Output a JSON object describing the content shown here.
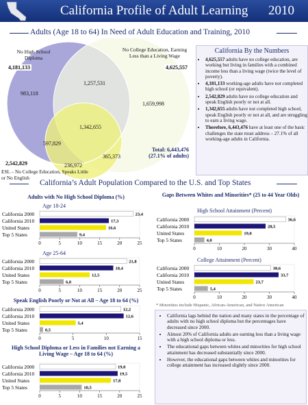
{
  "header": {
    "title": "California Profile of Adult Learning",
    "year": "2010"
  },
  "venn": {
    "title": "Adults (Age 18 to 64) In Need of Adult Education and Training, 2010",
    "label_a": "No High School Diploma",
    "total_a": "4,181,133",
    "label_b": "No College Education, Earning Less than a Living Wage",
    "total_b": "4,625,557",
    "label_c": "ESL – No College Education, Speaks Little or No English",
    "total_c": "2,542,829",
    "regions": [
      "983,118",
      "1,257,531",
      "1,659,998",
      "1,342,655",
      "597,829",
      "365,373",
      "236,972"
    ],
    "total_line1": "Total: 6,443,476",
    "total_line2": "(27.1% of adults)"
  },
  "sidebar": {
    "title": "California By the Numbers",
    "items": [
      {
        "lead": "4,625,557",
        "text": " adults have no college education, are working but living in families with a combined income less than a living wage (twice the level of poverty)."
      },
      {
        "lead": "4,181,133",
        "text": " working-age adults have not completed high school (or equivalent)."
      },
      {
        "lead": "2,542,829",
        "text": " adults have no college education and speak English poorly or not at all."
      },
      {
        "lead": "1,342,655",
        "text": " adults have not completed high school, speak English poorly or not at all, and are struggling to earn a living wage."
      },
      {
        "lead": "Therefore, 6,443,476",
        "text": " have at least one of the basic challenges the state must address – 27.1% of all working-age adults in California."
      }
    ]
  },
  "section_title": "California’s Adult Population Compared to the U.S. and Top States",
  "chart_data": [
    {
      "type": "bar",
      "title": "Adults with No High School Diploma (%)",
      "subtitle": "Age 18-24",
      "categories": [
        "California 2000",
        "California 2010",
        "United States",
        "Top 5 States"
      ],
      "values": [
        23.4,
        17.3,
        16.6,
        9.4
      ],
      "value_labels": [
        "23,4",
        "17,3",
        "16,6",
        "9,4"
      ],
      "colors": [
        "#ffffff",
        "#1d1676",
        "#f1e600",
        "#a8a8a8"
      ],
      "xlim": [
        0,
        25
      ],
      "xticks": [
        0,
        5,
        10,
        15,
        20,
        25
      ]
    },
    {
      "type": "bar",
      "subtitle": "Age 25-64",
      "categories": [
        "California 2000",
        "California 2010",
        "United States",
        "Top 5 States"
      ],
      "values": [
        21.8,
        18.4,
        12.5,
        6.0
      ],
      "value_labels": [
        "21,8",
        "18,4",
        "12,5",
        "6,0"
      ],
      "colors": [
        "#ffffff",
        "#1d1676",
        "#f1e600",
        "#a8a8a8"
      ],
      "xlim": [
        0,
        25
      ],
      "xticks": [
        0,
        5,
        10,
        15,
        20,
        25
      ]
    },
    {
      "type": "bar",
      "title": "Speak English Poorly or Not at All – Age 18 to 64 (%)",
      "categories": [
        "California 2000",
        "California 2010",
        "United States",
        "Top 5 States"
      ],
      "values": [
        12.2,
        12.6,
        5.4,
        0.5
      ],
      "value_labels": [
        "12,2",
        "12,6",
        "5,4",
        "0,5"
      ],
      "colors": [
        "#ffffff",
        "#1d1676",
        "#f1e600",
        "#a8a8a8"
      ],
      "xlim": [
        0,
        15
      ],
      "xticks": [
        0,
        5,
        10,
        15
      ]
    },
    {
      "type": "bar",
      "title": "High School Diploma or Less in Families not Earning a Living Wage – Age 18 to 64 (%)",
      "categories": [
        "California 2000",
        "California 2010",
        "United States",
        "Top 5 States"
      ],
      "values": [
        19.0,
        19.5,
        17.8,
        10.5
      ],
      "value_labels": [
        "19,0",
        "19,5",
        "17,8",
        "10,5"
      ],
      "colors": [
        "#ffffff",
        "#1d1676",
        "#f1e600",
        "#a8a8a8"
      ],
      "xlim": [
        0,
        25
      ],
      "xticks": [
        0,
        5,
        10,
        15,
        20,
        25
      ]
    },
    {
      "type": "bar",
      "title": "Gaps Between Whites and Minorities* (25 to 44 Year Olds)",
      "subtitle": "High School Attainment (Percent)",
      "categories": [
        "California 2000",
        "California 2010",
        "United States",
        "Top 5 States"
      ],
      "values": [
        36.6,
        28.5,
        19.0,
        4.0
      ],
      "value_labels": [
        "36,6",
        "28,5",
        "19,0",
        "4,0"
      ],
      "colors": [
        "#ffffff",
        "#1d1676",
        "#f1e600",
        "#a8a8a8"
      ],
      "xlim": [
        0,
        40
      ],
      "xticks": [
        0,
        10,
        20,
        30,
        40
      ]
    },
    {
      "type": "bar",
      "subtitle": "College Attainment (Percent)",
      "categories": [
        "California 2000",
        "California 2010",
        "United States",
        "Top 5 States"
      ],
      "values": [
        30.6,
        33.7,
        23.7,
        5.4
      ],
      "value_labels": [
        "30,6",
        "33,7",
        "23,7",
        "5,4"
      ],
      "colors": [
        "#ffffff",
        "#1d1676",
        "#f1e600",
        "#a8a8a8"
      ],
      "xlim": [
        0,
        40
      ],
      "xticks": [
        0,
        10,
        20,
        30,
        40
      ]
    }
  ],
  "footnote": "* Minorities include Hispanic, African-American, and Native American",
  "bullets": [
    "California lags behind the nation and many states in the percentage of adults with no high school diploma but the percentages have decreased since 2000.",
    "Almost 20% of California adults are earning less than a living wage with a high school diploma or less.",
    "The educational gaps between whites and minorities for high school attainment has decreased substantially since 2000.",
    "However, the educational gaps between whites and minorities for college attainment has increased slightly since 2000."
  ]
}
